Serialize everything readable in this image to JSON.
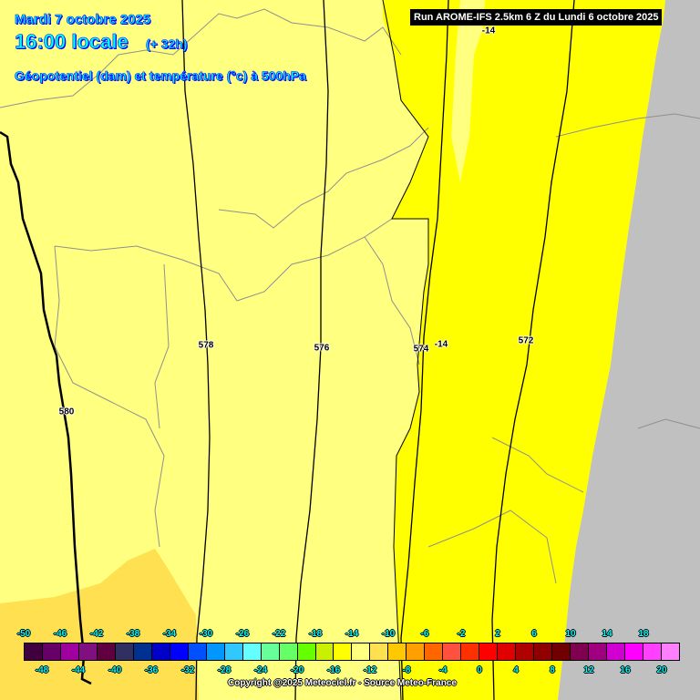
{
  "header": {
    "date": "Mardi 7 octobre 2025",
    "time": "16:00 locale",
    "lead": "(+ 32h)",
    "parameter": "Géopotentiel (dam) et température (°c) à 500hPa",
    "run": "Run AROME-IFS 2.5km 6 Z du Lundi 6 octobre 2025"
  },
  "map": {
    "colors": {
      "background": "#ffff80",
      "warm_band": "#ffff00",
      "cold_patch": "#ffe050",
      "outside_domain": "#c0c0c0"
    },
    "contour_labels": [
      {
        "name": "geopotential-580",
        "text": "580"
      },
      {
        "name": "geopotential-578",
        "text": "578"
      },
      {
        "name": "geopotential-576",
        "text": "576"
      },
      {
        "name": "geopotential-574",
        "text": "574"
      },
      {
        "name": "temperature-minus14",
        "text": "-14"
      },
      {
        "name": "geopotential-572",
        "text": "572"
      },
      {
        "name": "temperature-minus14-top",
        "text": "-14"
      }
    ]
  },
  "legend": {
    "top_labels": [
      "-50",
      "-46",
      "-42",
      "-38",
      "-34",
      "-30",
      "-26",
      "-22",
      "-18",
      "-14",
      "-10",
      "-6",
      "-2",
      "2",
      "6",
      "10",
      "14",
      "18"
    ],
    "bottom_labels": [
      "-48",
      "-44",
      "-40",
      "-36",
      "-32",
      "-28",
      "-24",
      "-20",
      "-16",
      "-12",
      "-8",
      "-4",
      "0",
      "4",
      "8",
      "12",
      "16",
      "20"
    ],
    "colors": [
      "#400040",
      "#660066",
      "#a000a0",
      "#801080",
      "#600040",
      "#303060",
      "#003090",
      "#0000c8",
      "#0000ff",
      "#0050ff",
      "#0098ff",
      "#30c8ff",
      "#66ffff",
      "#66ff99",
      "#66ff66",
      "#66ff00",
      "#c8f000",
      "#ffff00",
      "#ffff80",
      "#ffe050",
      "#ffc800",
      "#ffa000",
      "#ff6600",
      "#ff5040",
      "#ff3000",
      "#ff0000",
      "#e00000",
      "#b00000",
      "#900000",
      "#700000",
      "#800050",
      "#a00080",
      "#d000d0",
      "#ff00ff",
      "#ff40ff",
      "#ff80ff"
    ]
  },
  "copyright": "Copyright @2025 Meteociel.fr - Source Meteo-France"
}
